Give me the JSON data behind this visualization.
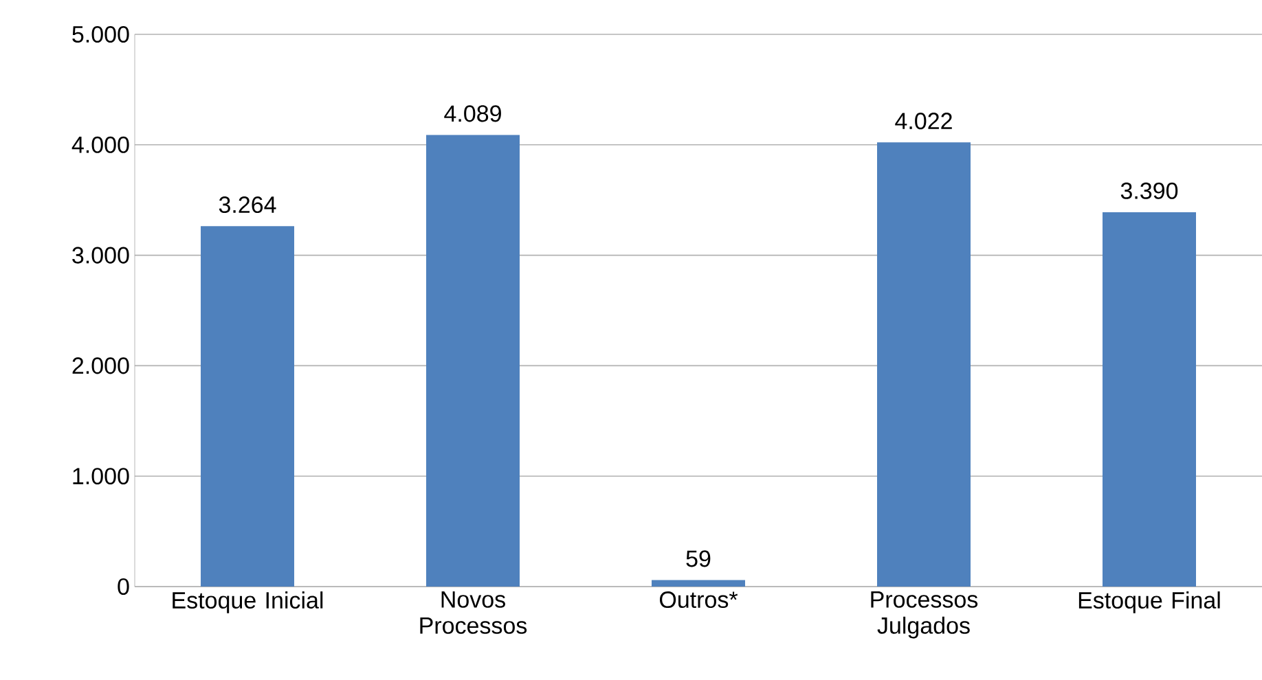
{
  "chart_data": {
    "type": "bar",
    "categories": [
      "Estoque Inicial",
      "Novos Processos",
      "Outros*",
      "Processos Julgados",
      "Estoque Final"
    ],
    "values": [
      3264,
      4089,
      59,
      4022,
      3390
    ],
    "value_labels": [
      "3.264",
      "4.089",
      "59",
      "4.022",
      "3.390"
    ],
    "color": "#4f81bd",
    "ylim": [
      0,
      5000
    ],
    "yticks": [
      {
        "value": 0,
        "label": "0"
      },
      {
        "value": 1000,
        "label": "1.000"
      },
      {
        "value": 2000,
        "label": "2.000"
      },
      {
        "value": 3000,
        "label": "3.000"
      },
      {
        "value": 4000,
        "label": "4.000"
      },
      {
        "value": 5000,
        "label": "5.000"
      }
    ],
    "grid": "y"
  }
}
